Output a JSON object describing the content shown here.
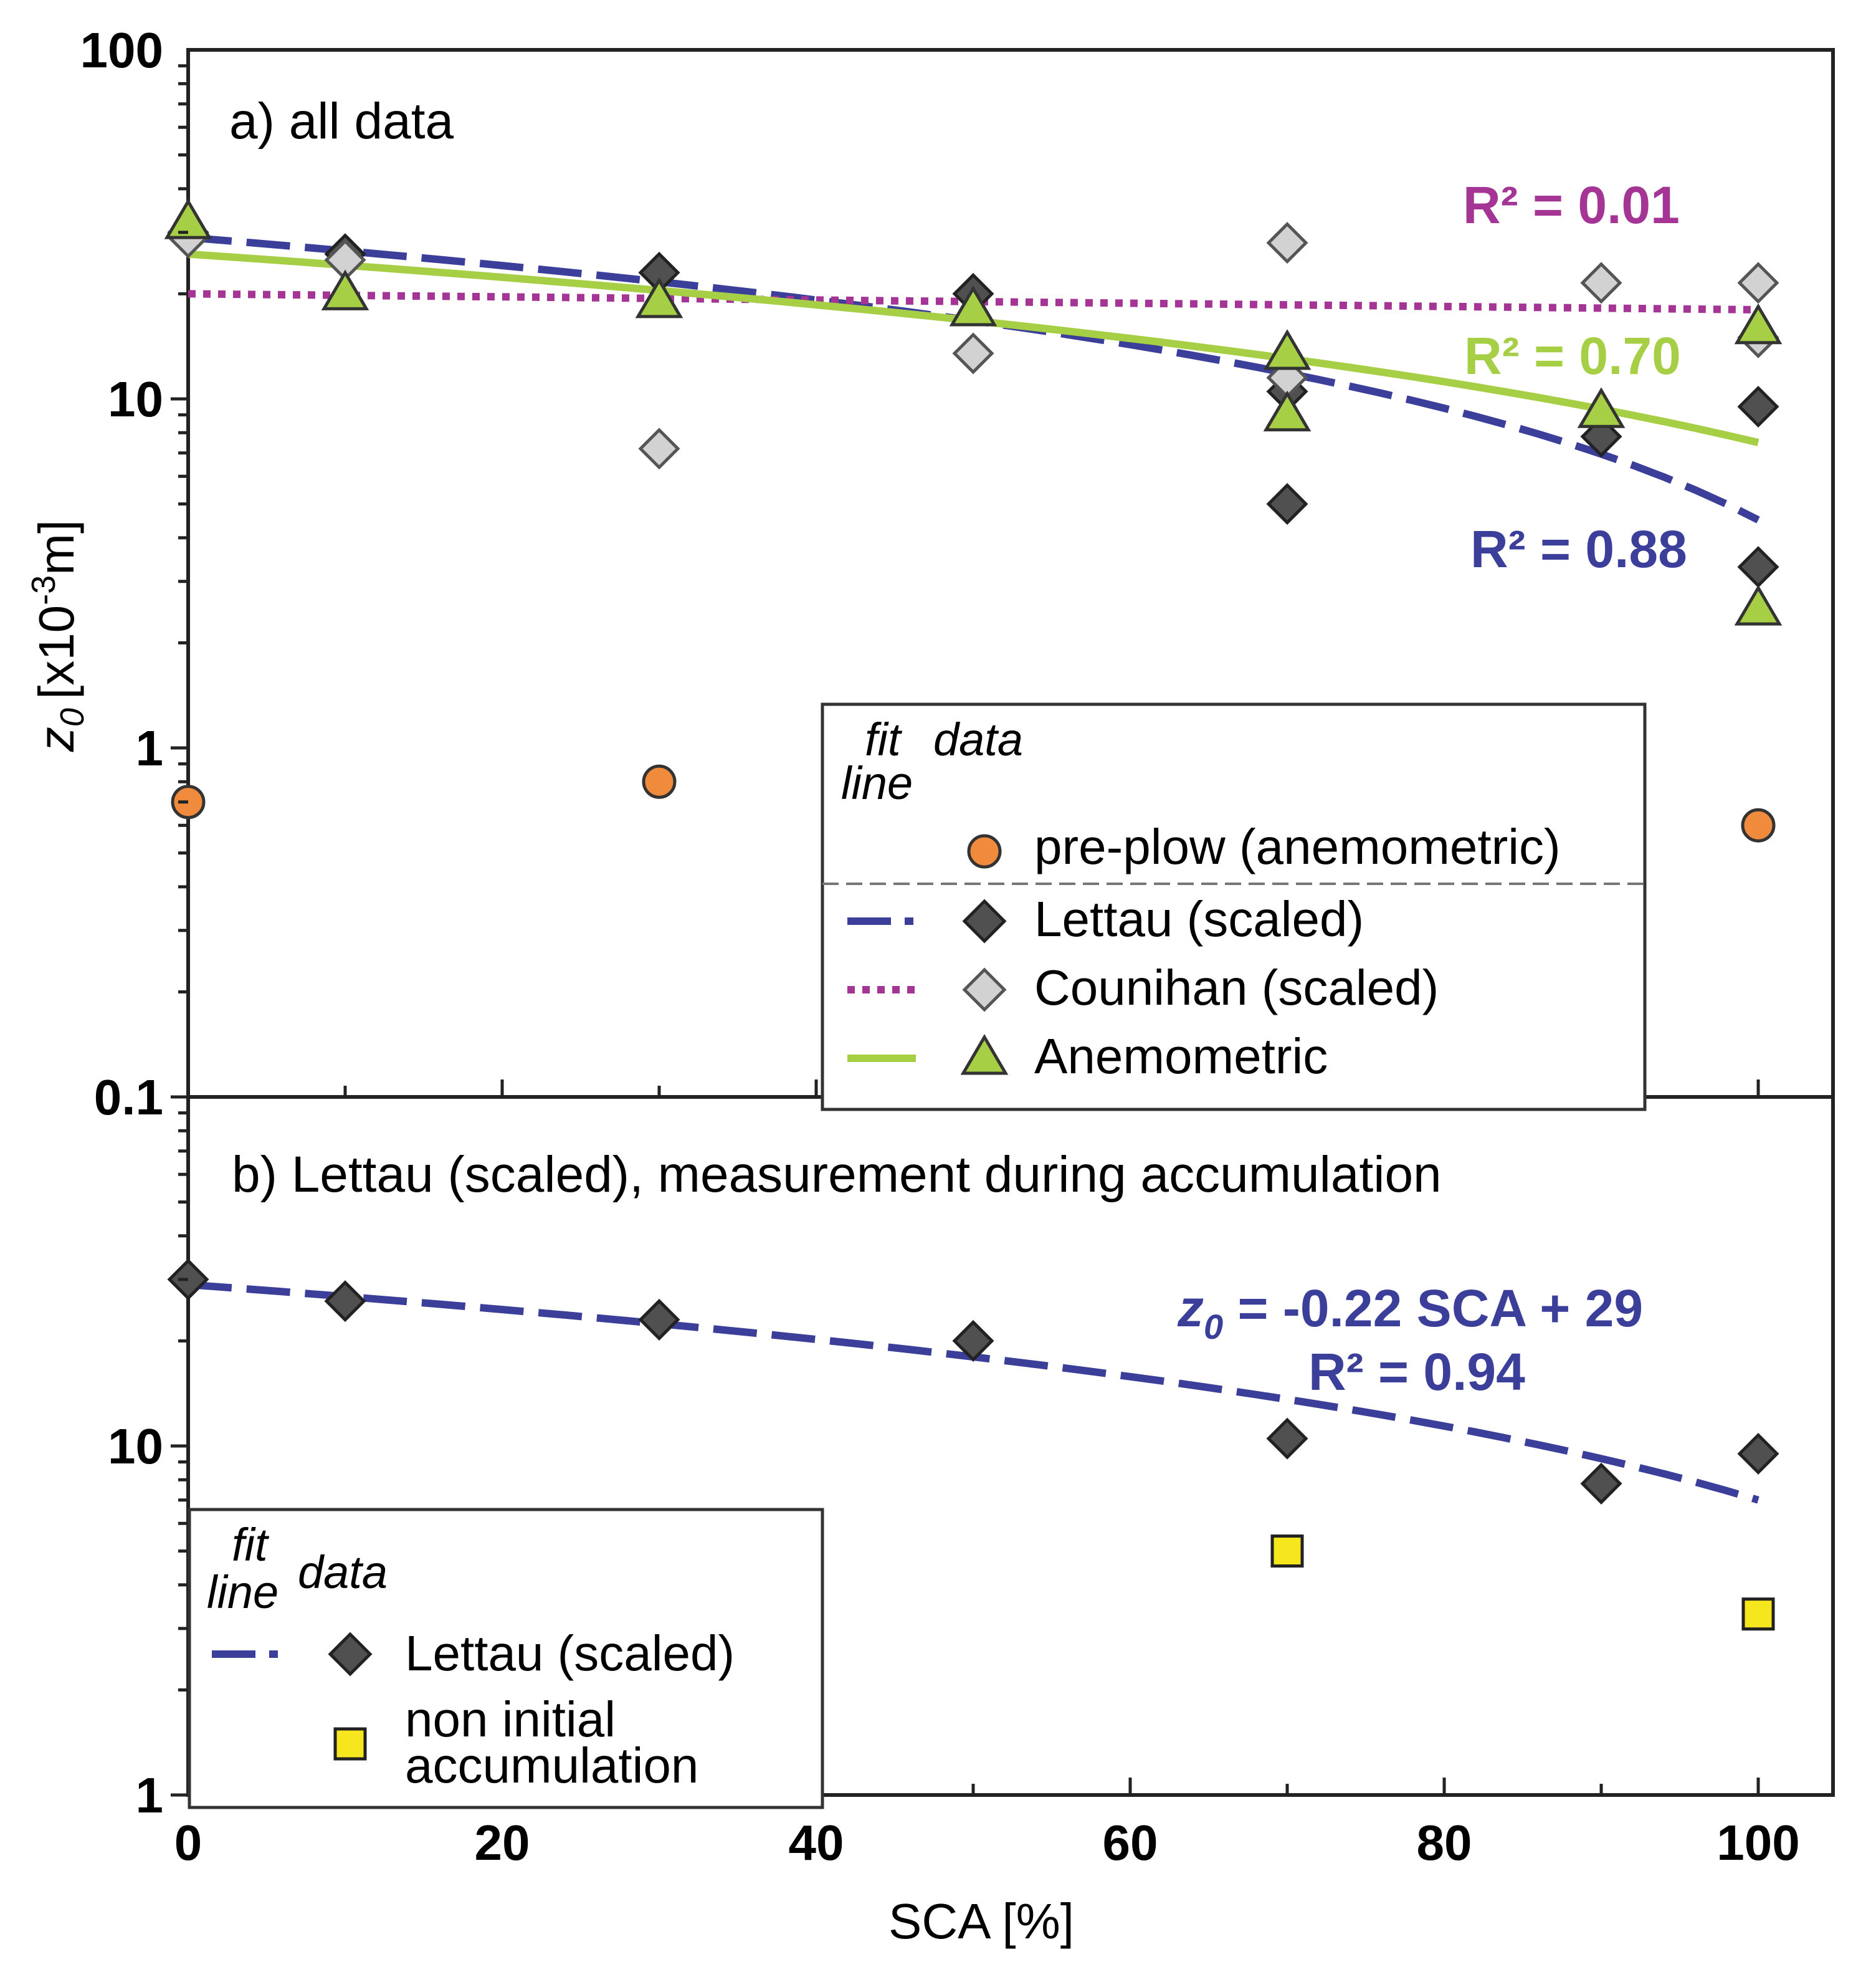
{
  "chart_data": [
    {
      "id": "a",
      "type": "scatter",
      "title": "a) all data",
      "xlabel": "SCA [%]",
      "ylabel_main": "z",
      "ylabel_sub": "0",
      "ylabel_unit_pre": "[x10",
      "ylabel_unit_exp": "-3",
      "ylabel_unit_post": "m]",
      "yscale": "log",
      "xlim": [
        0,
        100
      ],
      "ylim": [
        0.1,
        100
      ],
      "y_ticks": [
        {
          "value": 0.1,
          "label": "0.1"
        },
        {
          "value": 1,
          "label": "1"
        },
        {
          "value": 10,
          "label": "10"
        },
        {
          "value": 100,
          "label": "100"
        }
      ],
      "legend": {
        "header_fit": "fit",
        "header_line": "line",
        "header_data": "data",
        "entries": [
          {
            "key": "preplow",
            "label": "pre-plow (anemometric)"
          },
          {
            "key": "lettau",
            "label": "Lettau (scaled)"
          },
          {
            "key": "counihan",
            "label": "Counihan (scaled)"
          },
          {
            "key": "anemo",
            "label": "Anemometric"
          }
        ]
      },
      "series": [
        {
          "key": "lettau",
          "name": "Lettau (scaled)",
          "marker": "diamond",
          "color": "#505050",
          "points": [
            [
              0,
              30
            ],
            [
              10,
              26
            ],
            [
              30,
              23
            ],
            [
              50,
              20
            ],
            [
              70,
              10.5
            ],
            [
              70,
              5
            ],
            [
              90,
              7.8
            ],
            [
              100,
              9.5
            ],
            [
              100,
              3.3
            ]
          ]
        },
        {
          "key": "counihan",
          "name": "Counihan (scaled)",
          "marker": "diamond",
          "color": "#d2d2d2",
          "points": [
            [
              0,
              29
            ],
            [
              10,
              25
            ],
            [
              30,
              7.2
            ],
            [
              50,
              13.5
            ],
            [
              70,
              28
            ],
            [
              70,
              11.5
            ],
            [
              90,
              21.5
            ],
            [
              100,
              21.5
            ],
            [
              100,
              15
            ]
          ]
        },
        {
          "key": "anemo",
          "name": "Anemometric",
          "marker": "triangle",
          "color": "#a6cf45",
          "points": [
            [
              0,
              32
            ],
            [
              10,
              20
            ],
            [
              30,
              19
            ],
            [
              50,
              18
            ],
            [
              70,
              13.5
            ],
            [
              70,
              9
            ],
            [
              90,
              9.2
            ],
            [
              100,
              16
            ],
            [
              100,
              2.5
            ]
          ]
        },
        {
          "key": "preplow",
          "name": "pre-plow (anemometric)",
          "marker": "circle",
          "color": "#f08a3c",
          "points": [
            [
              0,
              0.7
            ],
            [
              30,
              0.8
            ],
            [
              100,
              0.6
            ]
          ]
        }
      ],
      "fits": [
        {
          "key": "lettau",
          "style": "dashed",
          "color": "#3b3f99",
          "intercept": 29,
          "slope": -0.245,
          "r2": "R² = 0.88"
        },
        {
          "key": "counihan",
          "style": "dotted",
          "color": "#a43595",
          "intercept": 20,
          "slope": -0.02,
          "r2": "R² = 0.01"
        },
        {
          "key": "anemo",
          "style": "solid",
          "color": "#a6cf45",
          "intercept": 26,
          "slope": -0.185,
          "r2": "R² = 0.70"
        }
      ]
    },
    {
      "id": "b",
      "type": "scatter",
      "title": "b) Lettau (scaled), measurement during accumulation",
      "xlabel": "SCA [%]",
      "yscale": "log",
      "xlim": [
        0,
        100
      ],
      "ylim": [
        1,
        100
      ],
      "y_ticks": [
        {
          "value": 1,
          "label": "1"
        },
        {
          "value": 10,
          "label": "10"
        }
      ],
      "x_ticks": [
        {
          "value": 0,
          "label": "0"
        },
        {
          "value": 20,
          "label": "20"
        },
        {
          "value": 40,
          "label": "40"
        },
        {
          "value": 60,
          "label": "60"
        },
        {
          "value": 80,
          "label": "80"
        },
        {
          "value": 100,
          "label": "100"
        }
      ],
      "legend": {
        "header_fit": "fit",
        "header_line": "line",
        "header_data": "data",
        "entries": [
          {
            "key": "lettau",
            "label": "Lettau (scaled)"
          },
          {
            "key": "nonaccum",
            "label_line1": "non initial",
            "label_line2": "accumulation"
          }
        ]
      },
      "series": [
        {
          "key": "lettau",
          "name": "Lettau (scaled)",
          "marker": "diamond",
          "color": "#505050",
          "points": [
            [
              0,
              30
            ],
            [
              10,
              26
            ],
            [
              30,
              23
            ],
            [
              50,
              20
            ],
            [
              70,
              10.5
            ],
            [
              90,
              7.8
            ],
            [
              100,
              9.5
            ]
          ]
        },
        {
          "key": "nonaccum",
          "name": "non initial accumulation",
          "marker": "square",
          "color": "#f5e61e",
          "points": [
            [
              70,
              5
            ],
            [
              100,
              3.3
            ]
          ]
        }
      ],
      "fits": [
        {
          "key": "lettau",
          "style": "dashed",
          "color": "#3b3f99",
          "intercept": 29,
          "slope": -0.22
        }
      ],
      "equation": {
        "z": "z",
        "sub": "0",
        "rhs": " = -0.22 SCA + 29",
        "r2": "R² = 0.94"
      }
    }
  ]
}
